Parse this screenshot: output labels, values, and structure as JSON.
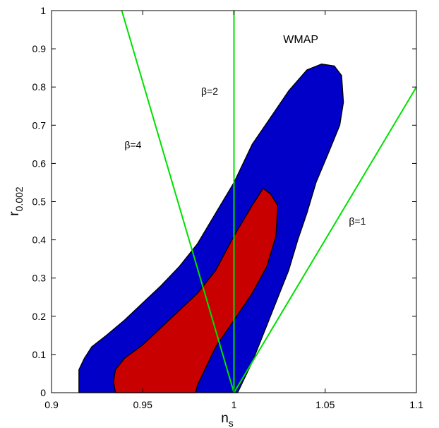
{
  "chart_data": {
    "type": "area",
    "xlabel": "n",
    "xlabel_sub": "s",
    "ylabel": "r",
    "ylabel_sub": "0.002",
    "xlim": [
      0.9,
      1.1
    ],
    "ylim": [
      0,
      1
    ],
    "x_ticks": [
      0.9,
      0.95,
      1.0,
      1.05,
      1.1
    ],
    "x_tick_labels": [
      "0.9",
      "0.95",
      "1",
      "1.05",
      "1.1"
    ],
    "y_ticks": [
      0,
      0.1,
      0.2,
      0.3,
      0.4,
      0.5,
      0.6,
      0.7,
      0.8,
      0.9,
      1.0
    ],
    "y_tick_labels": [
      "0",
      "0.1",
      "0.2",
      "0.3",
      "0.4",
      "0.5",
      "0.6",
      "0.7",
      "0.8",
      "0.9",
      "1"
    ],
    "grid": false,
    "series": [
      {
        "color": "#0000c8",
        "outline": [
          [
            0.915,
            0.0
          ],
          [
            0.915,
            0.06
          ],
          [
            0.918,
            0.09
          ],
          [
            0.922,
            0.12
          ],
          [
            0.93,
            0.15
          ],
          [
            0.94,
            0.19
          ],
          [
            0.95,
            0.235
          ],
          [
            0.96,
            0.28
          ],
          [
            0.97,
            0.33
          ],
          [
            0.98,
            0.39
          ],
          [
            0.99,
            0.47
          ],
          [
            1.0,
            0.55
          ],
          [
            1.01,
            0.65
          ],
          [
            1.02,
            0.72
          ],
          [
            1.03,
            0.79
          ],
          [
            1.04,
            0.845
          ],
          [
            1.048,
            0.86
          ],
          [
            1.055,
            0.855
          ],
          [
            1.059,
            0.83
          ],
          [
            1.06,
            0.76
          ],
          [
            1.058,
            0.7
          ],
          [
            1.052,
            0.63
          ],
          [
            1.045,
            0.55
          ],
          [
            1.04,
            0.47
          ],
          [
            1.035,
            0.4
          ],
          [
            1.03,
            0.32
          ],
          [
            1.025,
            0.26
          ],
          [
            1.02,
            0.2
          ],
          [
            1.015,
            0.14
          ],
          [
            1.01,
            0.08
          ],
          [
            1.005,
            0.03
          ],
          [
            1.002,
            0.0
          ]
        ]
      },
      {
        "color": "#c80000",
        "outline": [
          [
            0.935,
            0.0
          ],
          [
            0.934,
            0.03
          ],
          [
            0.935,
            0.06
          ],
          [
            0.94,
            0.09
          ],
          [
            0.95,
            0.125
          ],
          [
            0.96,
            0.17
          ],
          [
            0.97,
            0.215
          ],
          [
            0.98,
            0.26
          ],
          [
            0.99,
            0.32
          ],
          [
            1.0,
            0.41
          ],
          [
            1.01,
            0.49
          ],
          [
            1.016,
            0.535
          ],
          [
            1.02,
            0.52
          ],
          [
            1.024,
            0.49
          ],
          [
            1.023,
            0.41
          ],
          [
            1.018,
            0.33
          ],
          [
            1.01,
            0.26
          ],
          [
            1.0,
            0.19
          ],
          [
            0.99,
            0.12
          ],
          [
            0.984,
            0.06
          ],
          [
            0.98,
            0.02
          ],
          [
            0.979,
            0.0
          ]
        ]
      }
    ],
    "lines": [
      {
        "label": "β=4",
        "color": "#00e000",
        "points": [
          [
            0.9385,
            1.0
          ],
          [
            1.0,
            0.0
          ]
        ]
      },
      {
        "label": "β=2",
        "color": "#00e000",
        "points": [
          [
            1.0,
            1.0
          ],
          [
            1.0,
            0.0
          ]
        ]
      },
      {
        "label": "β=1",
        "color": "#00e000",
        "points": [
          [
            1.0,
            0.0
          ],
          [
            1.1,
            0.8
          ]
        ]
      }
    ],
    "annotations": [
      {
        "text": "WMAP",
        "x": 1.027,
        "y": 0.915
      },
      {
        "text": "β=4",
        "x": 0.94,
        "y": 0.64
      },
      {
        "text": "β=2",
        "x": 0.982,
        "y": 0.78
      },
      {
        "text": "β=1",
        "x": 1.063,
        "y": 0.44
      }
    ]
  }
}
